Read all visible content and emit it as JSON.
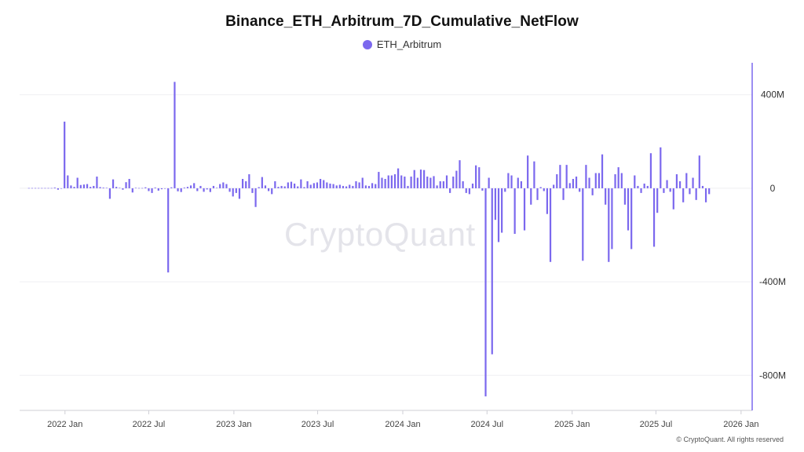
{
  "chart_data": {
    "type": "bar",
    "title": "Binance_ETH_Arbitrum_7D_Cumulative_NetFlow",
    "legend": {
      "position": "top-center"
    },
    "series": [
      {
        "name": "ETH_Arbitrum",
        "color": "#7b68ee",
        "points": [
          [
            "2021-10-15",
            1
          ],
          [
            "2021-10-22",
            1
          ],
          [
            "2021-10-29",
            1
          ],
          [
            "2021-11-05",
            1
          ],
          [
            "2021-11-12",
            1
          ],
          [
            "2021-11-19",
            1
          ],
          [
            "2021-11-26",
            1
          ],
          [
            "2021-12-03",
            1
          ],
          [
            "2021-12-10",
            3
          ],
          [
            "2021-12-17",
            -6
          ],
          [
            "2021-12-24",
            -2
          ],
          [
            "2021-12-31",
            285
          ],
          [
            "2022-01-07",
            55
          ],
          [
            "2022-01-14",
            12
          ],
          [
            "2022-01-21",
            6
          ],
          [
            "2022-01-28",
            45
          ],
          [
            "2022-02-04",
            14
          ],
          [
            "2022-02-11",
            16
          ],
          [
            "2022-02-18",
            18
          ],
          [
            "2022-02-25",
            6
          ],
          [
            "2022-03-04",
            10
          ],
          [
            "2022-03-11",
            50
          ],
          [
            "2022-03-18",
            5
          ],
          [
            "2022-03-25",
            3
          ],
          [
            "2022-04-01",
            2
          ],
          [
            "2022-04-08",
            -45
          ],
          [
            "2022-04-15",
            38
          ],
          [
            "2022-04-22",
            6
          ],
          [
            "2022-04-29",
            2
          ],
          [
            "2022-05-06",
            -6
          ],
          [
            "2022-05-13",
            26
          ],
          [
            "2022-05-20",
            40
          ],
          [
            "2022-05-27",
            -18
          ],
          [
            "2022-06-03",
            2
          ],
          [
            "2022-06-10",
            1
          ],
          [
            "2022-06-17",
            1
          ],
          [
            "2022-06-24",
            4
          ],
          [
            "2022-07-01",
            -12
          ],
          [
            "2022-07-08",
            -20
          ],
          [
            "2022-07-15",
            3
          ],
          [
            "2022-07-22",
            -10
          ],
          [
            "2022-07-29",
            -4
          ],
          [
            "2022-08-05",
            -2
          ],
          [
            "2022-08-12",
            -360
          ],
          [
            "2022-08-19",
            4
          ],
          [
            "2022-08-26",
            455
          ],
          [
            "2022-09-02",
            -13
          ],
          [
            "2022-09-09",
            -16
          ],
          [
            "2022-09-16",
            3
          ],
          [
            "2022-09-23",
            6
          ],
          [
            "2022-09-30",
            12
          ],
          [
            "2022-10-07",
            22
          ],
          [
            "2022-10-14",
            -12
          ],
          [
            "2022-10-21",
            10
          ],
          [
            "2022-10-28",
            -15
          ],
          [
            "2022-11-04",
            -5
          ],
          [
            "2022-11-11",
            -16
          ],
          [
            "2022-11-18",
            10
          ],
          [
            "2022-11-25",
            2
          ],
          [
            "2022-12-02",
            18
          ],
          [
            "2022-12-09",
            25
          ],
          [
            "2022-12-16",
            18
          ],
          [
            "2022-12-23",
            -15
          ],
          [
            "2022-12-30",
            -35
          ],
          [
            "2023-01-06",
            -20
          ],
          [
            "2023-01-13",
            -45
          ],
          [
            "2023-01-20",
            40
          ],
          [
            "2023-01-27",
            30
          ],
          [
            "2023-02-03",
            60
          ],
          [
            "2023-02-10",
            -20
          ],
          [
            "2023-02-17",
            -80
          ],
          [
            "2023-02-24",
            5
          ],
          [
            "2023-03-03",
            48
          ],
          [
            "2023-03-10",
            12
          ],
          [
            "2023-03-17",
            -12
          ],
          [
            "2023-03-24",
            -25
          ],
          [
            "2023-03-31",
            30
          ],
          [
            "2023-04-07",
            6
          ],
          [
            "2023-04-14",
            10
          ],
          [
            "2023-04-21",
            8
          ],
          [
            "2023-04-28",
            25
          ],
          [
            "2023-05-05",
            28
          ],
          [
            "2023-05-12",
            20
          ],
          [
            "2023-05-19",
            8
          ],
          [
            "2023-05-26",
            38
          ],
          [
            "2023-06-02",
            5
          ],
          [
            "2023-06-09",
            30
          ],
          [
            "2023-06-16",
            15
          ],
          [
            "2023-06-23",
            22
          ],
          [
            "2023-06-30",
            25
          ],
          [
            "2023-07-07",
            40
          ],
          [
            "2023-07-14",
            35
          ],
          [
            "2023-07-21",
            25
          ],
          [
            "2023-07-28",
            20
          ],
          [
            "2023-08-04",
            18
          ],
          [
            "2023-08-11",
            12
          ],
          [
            "2023-08-18",
            15
          ],
          [
            "2023-08-25",
            10
          ],
          [
            "2023-09-01",
            8
          ],
          [
            "2023-09-08",
            15
          ],
          [
            "2023-09-15",
            10
          ],
          [
            "2023-09-22",
            30
          ],
          [
            "2023-09-29",
            25
          ],
          [
            "2023-10-06",
            45
          ],
          [
            "2023-10-13",
            12
          ],
          [
            "2023-10-20",
            10
          ],
          [
            "2023-10-27",
            22
          ],
          [
            "2023-11-03",
            18
          ],
          [
            "2023-11-10",
            70
          ],
          [
            "2023-11-17",
            45
          ],
          [
            "2023-11-24",
            40
          ],
          [
            "2023-12-01",
            55
          ],
          [
            "2023-12-08",
            55
          ],
          [
            "2023-12-15",
            60
          ],
          [
            "2023-12-22",
            85
          ],
          [
            "2023-12-29",
            55
          ],
          [
            "2024-01-05",
            50
          ],
          [
            "2024-01-12",
            10
          ],
          [
            "2024-01-19",
            50
          ],
          [
            "2024-01-26",
            78
          ],
          [
            "2024-02-02",
            45
          ],
          [
            "2024-02-09",
            80
          ],
          [
            "2024-02-16",
            78
          ],
          [
            "2024-02-23",
            50
          ],
          [
            "2024-03-01",
            45
          ],
          [
            "2024-03-08",
            52
          ],
          [
            "2024-03-15",
            12
          ],
          [
            "2024-03-22",
            30
          ],
          [
            "2024-03-29",
            30
          ],
          [
            "2024-04-05",
            55
          ],
          [
            "2024-04-12",
            -20
          ],
          [
            "2024-04-19",
            50
          ],
          [
            "2024-04-26",
            75
          ],
          [
            "2024-05-03",
            120
          ],
          [
            "2024-05-10",
            30
          ],
          [
            "2024-05-17",
            -20
          ],
          [
            "2024-05-24",
            -25
          ],
          [
            "2024-05-31",
            20
          ],
          [
            "2024-06-07",
            98
          ],
          [
            "2024-06-14",
            90
          ],
          [
            "2024-06-21",
            -10
          ],
          [
            "2024-06-28",
            -890
          ],
          [
            "2024-07-05",
            45
          ],
          [
            "2024-07-12",
            -710
          ],
          [
            "2024-07-19",
            -135
          ],
          [
            "2024-07-26",
            -230
          ],
          [
            "2024-08-02",
            -190
          ],
          [
            "2024-08-09",
            -15
          ],
          [
            "2024-08-16",
            65
          ],
          [
            "2024-08-23",
            55
          ],
          [
            "2024-08-30",
            -195
          ],
          [
            "2024-09-06",
            45
          ],
          [
            "2024-09-13",
            30
          ],
          [
            "2024-09-20",
            -180
          ],
          [
            "2024-09-27",
            140
          ],
          [
            "2024-10-04",
            -70
          ],
          [
            "2024-10-11",
            115
          ],
          [
            "2024-10-18",
            -50
          ],
          [
            "2024-10-25",
            5
          ],
          [
            "2024-11-01",
            -12
          ],
          [
            "2024-11-08",
            -110
          ],
          [
            "2024-11-15",
            -315
          ],
          [
            "2024-11-22",
            15
          ],
          [
            "2024-11-29",
            60
          ],
          [
            "2024-12-06",
            100
          ],
          [
            "2024-12-13",
            -50
          ],
          [
            "2024-12-20",
            100
          ],
          [
            "2024-12-27",
            22
          ],
          [
            "2025-01-03",
            40
          ],
          [
            "2025-01-10",
            50
          ],
          [
            "2025-01-17",
            -15
          ],
          [
            "2025-01-24",
            -310
          ],
          [
            "2025-01-31",
            100
          ],
          [
            "2025-02-07",
            45
          ],
          [
            "2025-02-14",
            -30
          ],
          [
            "2025-02-21",
            65
          ],
          [
            "2025-02-28",
            65
          ],
          [
            "2025-03-07",
            145
          ],
          [
            "2025-03-14",
            -70
          ],
          [
            "2025-03-21",
            -315
          ],
          [
            "2025-03-28",
            -260
          ],
          [
            "2025-04-04",
            60
          ],
          [
            "2025-04-11",
            90
          ],
          [
            "2025-04-18",
            65
          ],
          [
            "2025-04-25",
            -70
          ],
          [
            "2025-05-02",
            -180
          ],
          [
            "2025-05-09",
            -260
          ],
          [
            "2025-05-16",
            55
          ],
          [
            "2025-05-23",
            10
          ],
          [
            "2025-05-30",
            -20
          ],
          [
            "2025-06-06",
            20
          ],
          [
            "2025-06-13",
            10
          ],
          [
            "2025-06-20",
            150
          ],
          [
            "2025-06-27",
            -250
          ],
          [
            "2025-07-04",
            -105
          ],
          [
            "2025-07-11",
            175
          ],
          [
            "2025-07-18",
            -20
          ],
          [
            "2025-07-25",
            35
          ],
          [
            "2025-08-01",
            -15
          ],
          [
            "2025-08-08",
            -90
          ],
          [
            "2025-08-15",
            60
          ],
          [
            "2025-08-22",
            30
          ],
          [
            "2025-08-29",
            -60
          ],
          [
            "2025-09-05",
            65
          ],
          [
            "2025-09-12",
            -25
          ],
          [
            "2025-09-19",
            45
          ],
          [
            "2025-09-26",
            -50
          ],
          [
            "2025-10-03",
            140
          ],
          [
            "2025-10-10",
            10
          ],
          [
            "2025-10-17",
            -60
          ],
          [
            "2025-10-24",
            -25
          ]
        ]
      }
    ],
    "x_axis": {
      "type": "date",
      "range": [
        "2021-09-25",
        "2026-01-25"
      ],
      "tick_labels": [
        {
          "date": "2022-01-01",
          "label": "2022 Jan"
        },
        {
          "date": "2022-07-01",
          "label": "2022 Jul"
        },
        {
          "date": "2023-01-01",
          "label": "2023 Jan"
        },
        {
          "date": "2023-07-01",
          "label": "2023 Jul"
        },
        {
          "date": "2024-01-01",
          "label": "2024 Jan"
        },
        {
          "date": "2024-07-01",
          "label": "2024 Jul"
        },
        {
          "date": "2025-01-01",
          "label": "2025 Jan"
        },
        {
          "date": "2025-07-01",
          "label": "2025 Jul"
        },
        {
          "date": "2026-01-01",
          "label": "2026 Jan"
        }
      ]
    },
    "y_axis": {
      "position": "right",
      "range": [
        -950,
        530
      ],
      "unit_scale": "millions",
      "tick_labels": [
        {
          "value": 400,
          "label": "400M"
        },
        {
          "value": 0,
          "label": "0"
        },
        {
          "value": -400,
          "label": "-400M"
        },
        {
          "value": -800,
          "label": "-800M"
        }
      ]
    },
    "grid": {
      "horizontal": true,
      "vertical": false
    }
  },
  "watermark": "CryptoQuant",
  "copyright": "© CryptoQuant. All rights reserved"
}
